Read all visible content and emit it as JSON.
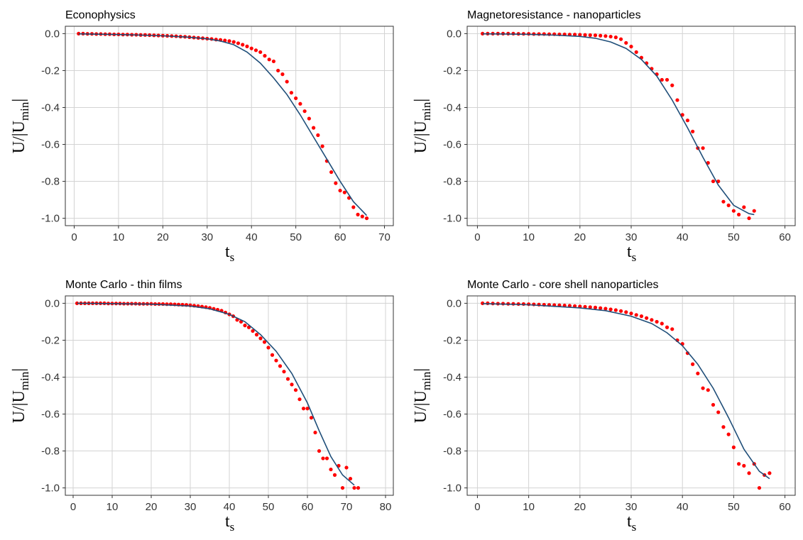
{
  "labels": {
    "x_main": "t",
    "x_sub": "s",
    "y_pre": "U/|U",
    "y_sub": "min",
    "y_post": "|"
  },
  "colors": {
    "points": "#ff0000",
    "curve": "#1f4e79",
    "grid": "#d3d3d3",
    "frame": "#333333"
  },
  "chart_data": [
    {
      "type": "scatter",
      "title": "Econophysics",
      "xlabel": "t_s",
      "ylabel": "U/|U_min|",
      "xlim": [
        -2,
        72
      ],
      "ylim": [
        -1.04,
        0.04
      ],
      "xticks": [
        0,
        10,
        20,
        30,
        40,
        50,
        60,
        70
      ],
      "yticks": [
        0.0,
        -0.2,
        -0.4,
        -0.6,
        -0.8,
        -1.0
      ],
      "ytick_labels": [
        "0.0",
        "-0.2",
        "-0.4",
        "-0.6",
        "-0.8",
        "-1.0"
      ],
      "grid": true,
      "series": [
        {
          "kind": "points",
          "x": [
            1,
            2,
            3,
            4,
            5,
            6,
            7,
            8,
            9,
            10,
            11,
            12,
            13,
            14,
            15,
            16,
            17,
            18,
            19,
            20,
            21,
            22,
            23,
            24,
            25,
            26,
            27,
            28,
            29,
            30,
            31,
            32,
            33,
            34,
            35,
            36,
            37,
            38,
            39,
            40,
            41,
            42,
            43,
            44,
            45,
            46,
            47,
            48,
            49,
            50,
            51,
            52,
            53,
            54,
            55,
            56,
            57,
            58,
            59,
            60,
            61,
            62,
            63,
            64,
            65,
            66
          ],
          "y": [
            0.0,
            0.0,
            -0.001,
            -0.001,
            -0.002,
            -0.002,
            -0.003,
            -0.003,
            -0.004,
            -0.004,
            -0.005,
            -0.005,
            -0.006,
            -0.006,
            -0.007,
            -0.007,
            -0.008,
            -0.009,
            -0.01,
            -0.011,
            -0.012,
            -0.013,
            -0.014,
            -0.016,
            -0.017,
            -0.019,
            -0.021,
            -0.023,
            -0.025,
            -0.027,
            -0.029,
            -0.032,
            -0.034,
            -0.037,
            -0.04,
            -0.045,
            -0.052,
            -0.06,
            -0.069,
            -0.08,
            -0.09,
            -0.1,
            -0.12,
            -0.14,
            -0.15,
            -0.2,
            -0.22,
            -0.26,
            -0.32,
            -0.35,
            -0.38,
            -0.42,
            -0.46,
            -0.51,
            -0.55,
            -0.61,
            -0.69,
            -0.75,
            -0.81,
            -0.85,
            -0.86,
            -0.89,
            -0.94,
            -0.98,
            -0.99,
            -1.0
          ]
        },
        {
          "kind": "curve",
          "x": [
            1,
            5,
            10,
            15,
            20,
            25,
            30,
            33,
            36,
            39,
            42,
            45,
            48,
            51,
            54,
            57,
            60,
            63,
            66
          ],
          "y": [
            -0.001,
            -0.003,
            -0.005,
            -0.008,
            -0.012,
            -0.018,
            -0.028,
            -0.04,
            -0.06,
            -0.1,
            -0.16,
            -0.24,
            -0.33,
            -0.44,
            -0.56,
            -0.68,
            -0.8,
            -0.91,
            -0.985
          ]
        }
      ]
    },
    {
      "type": "scatter",
      "title": "Magnetoresistance - nanoparticles",
      "xlabel": "t_s",
      "ylabel": "U/|U_min|",
      "xlim": [
        -2,
        62
      ],
      "ylim": [
        -1.04,
        0.04
      ],
      "xticks": [
        0,
        10,
        20,
        30,
        40,
        50,
        60
      ],
      "yticks": [
        0.0,
        -0.2,
        -0.4,
        -0.6,
        -0.8,
        -1.0
      ],
      "ytick_labels": [
        "0.0",
        "-0.2",
        "-0.4",
        "-0.6",
        "-0.8",
        "-1.0"
      ],
      "grid": true,
      "series": [
        {
          "kind": "points",
          "x": [
            1,
            2,
            3,
            4,
            5,
            6,
            7,
            8,
            9,
            10,
            11,
            12,
            13,
            14,
            15,
            16,
            17,
            18,
            19,
            20,
            21,
            22,
            23,
            24,
            25,
            26,
            27,
            28,
            29,
            30,
            31,
            32,
            33,
            34,
            35,
            36,
            37,
            38,
            39,
            40,
            41,
            42,
            43,
            44,
            45,
            46,
            47,
            48,
            49,
            50,
            51,
            52,
            53,
            54
          ],
          "y": [
            0.0,
            0.0,
            0.0,
            0.0,
            0.0,
            0.0,
            0.0,
            -0.001,
            -0.001,
            -0.001,
            -0.002,
            -0.002,
            -0.002,
            -0.003,
            -0.003,
            -0.004,
            -0.004,
            -0.005,
            -0.005,
            -0.006,
            -0.007,
            -0.008,
            -0.009,
            -0.011,
            -0.013,
            -0.016,
            -0.02,
            -0.03,
            -0.05,
            -0.07,
            -0.1,
            -0.13,
            -0.16,
            -0.19,
            -0.22,
            -0.25,
            -0.25,
            -0.28,
            -0.36,
            -0.44,
            -0.47,
            -0.53,
            -0.62,
            -0.62,
            -0.7,
            -0.8,
            -0.8,
            -0.91,
            -0.93,
            -0.96,
            -0.98,
            -0.94,
            -1.0,
            -0.96
          ]
        },
        {
          "kind": "curve",
          "x": [
            1,
            5,
            10,
            15,
            20,
            23,
            26,
            29,
            32,
            35,
            38,
            41,
            44,
            47,
            50,
            53,
            54
          ],
          "y": [
            -0.001,
            -0.002,
            -0.004,
            -0.008,
            -0.015,
            -0.025,
            -0.045,
            -0.08,
            -0.14,
            -0.23,
            -0.36,
            -0.51,
            -0.67,
            -0.82,
            -0.93,
            -0.975,
            -0.98
          ]
        }
      ]
    },
    {
      "type": "scatter",
      "title": "Monte Carlo - thin films",
      "xlabel": "t_s",
      "ylabel": "U/|U_min|",
      "xlim": [
        -2,
        82
      ],
      "ylim": [
        -1.04,
        0.04
      ],
      "xticks": [
        0,
        10,
        20,
        30,
        40,
        50,
        60,
        70,
        80
      ],
      "yticks": [
        0.0,
        -0.2,
        -0.4,
        -0.6,
        -0.8,
        -1.0
      ],
      "ytick_labels": [
        "0.0",
        "-0.2",
        "-0.4",
        "-0.6",
        "-0.8",
        "-1.0"
      ],
      "grid": true,
      "series": [
        {
          "kind": "points",
          "x": [
            1,
            2,
            3,
            4,
            5,
            6,
            7,
            8,
            9,
            10,
            11,
            12,
            13,
            14,
            15,
            16,
            17,
            18,
            19,
            20,
            21,
            22,
            23,
            24,
            25,
            26,
            27,
            28,
            29,
            30,
            31,
            32,
            33,
            34,
            35,
            36,
            37,
            38,
            39,
            40,
            41,
            42,
            43,
            44,
            45,
            46,
            47,
            48,
            49,
            50,
            51,
            52,
            53,
            54,
            55,
            56,
            57,
            58,
            59,
            60,
            61,
            62,
            63,
            64,
            65,
            66,
            67,
            68,
            69,
            70,
            71,
            72,
            73
          ],
          "y": [
            0.0,
            0.0,
            0.0,
            0.0,
            0.0,
            0.0,
            0.0,
            0.0,
            -0.001,
            -0.001,
            -0.001,
            -0.001,
            -0.002,
            -0.002,
            -0.002,
            -0.002,
            -0.003,
            -0.003,
            -0.003,
            -0.003,
            -0.004,
            -0.004,
            -0.004,
            -0.005,
            -0.005,
            -0.006,
            -0.007,
            -0.008,
            -0.009,
            -0.011,
            -0.013,
            -0.015,
            -0.018,
            -0.021,
            -0.025,
            -0.03,
            -0.035,
            -0.04,
            -0.05,
            -0.06,
            -0.07,
            -0.09,
            -0.1,
            -0.12,
            -0.13,
            -0.15,
            -0.17,
            -0.19,
            -0.21,
            -0.24,
            -0.28,
            -0.31,
            -0.34,
            -0.37,
            -0.41,
            -0.44,
            -0.47,
            -0.52,
            -0.57,
            -0.57,
            -0.62,
            -0.7,
            -0.8,
            -0.84,
            -0.84,
            -0.9,
            -0.93,
            -0.88,
            -1.0,
            -0.89,
            -0.95,
            -1.0,
            -1.0
          ]
        },
        {
          "kind": "curve",
          "x": [
            1,
            10,
            20,
            30,
            35,
            40,
            44,
            48,
            52,
            56,
            60,
            63,
            66,
            69,
            72
          ],
          "y": [
            0.0,
            -0.002,
            -0.005,
            -0.015,
            -0.03,
            -0.06,
            -0.1,
            -0.17,
            -0.26,
            -0.38,
            -0.54,
            -0.69,
            -0.83,
            -0.93,
            -0.985
          ]
        }
      ]
    },
    {
      "type": "scatter",
      "title": "Monte Carlo - core shell nanoparticles",
      "xlabel": "t_s",
      "ylabel": "U/|U_min|",
      "xlim": [
        -2,
        62
      ],
      "ylim": [
        -1.04,
        0.04
      ],
      "xticks": [
        0,
        10,
        20,
        30,
        40,
        50,
        60
      ],
      "yticks": [
        0.0,
        -0.2,
        -0.4,
        -0.6,
        -0.8,
        -1.0
      ],
      "ytick_labels": [
        "0.0",
        "-0.2",
        "-0.4",
        "-0.6",
        "-0.8",
        "-1.0"
      ],
      "grid": true,
      "series": [
        {
          "kind": "points",
          "x": [
            1,
            2,
            3,
            4,
            5,
            6,
            7,
            8,
            9,
            10,
            11,
            12,
            13,
            14,
            15,
            16,
            17,
            18,
            19,
            20,
            21,
            22,
            23,
            24,
            25,
            26,
            27,
            28,
            29,
            30,
            31,
            32,
            33,
            34,
            35,
            36,
            37,
            38,
            39,
            40,
            41,
            42,
            43,
            44,
            45,
            46,
            47,
            48,
            49,
            50,
            51,
            52,
            53,
            54,
            55,
            56,
            57
          ],
          "y": [
            0.0,
            0.0,
            -0.001,
            -0.002,
            -0.002,
            -0.003,
            -0.003,
            -0.004,
            -0.004,
            -0.005,
            -0.006,
            -0.007,
            -0.008,
            -0.009,
            -0.01,
            -0.011,
            -0.012,
            -0.013,
            -0.015,
            -0.017,
            -0.019,
            -0.021,
            -0.023,
            -0.026,
            -0.029,
            -0.033,
            -0.037,
            -0.042,
            -0.048,
            -0.055,
            -0.063,
            -0.07,
            -0.08,
            -0.09,
            -0.1,
            -0.11,
            -0.13,
            -0.14,
            -0.2,
            -0.22,
            -0.27,
            -0.33,
            -0.38,
            -0.46,
            -0.47,
            -0.55,
            -0.59,
            -0.67,
            -0.71,
            -0.78,
            -0.87,
            -0.88,
            -0.92,
            -0.87,
            -1.0,
            -0.93,
            -0.92
          ]
        },
        {
          "kind": "curve",
          "x": [
            1,
            10,
            20,
            25,
            30,
            34,
            37,
            40,
            43,
            46,
            49,
            52,
            55,
            57
          ],
          "y": [
            -0.002,
            -0.008,
            -0.025,
            -0.04,
            -0.07,
            -0.11,
            -0.16,
            -0.23,
            -0.33,
            -0.46,
            -0.62,
            -0.79,
            -0.91,
            -0.95
          ]
        }
      ]
    }
  ]
}
